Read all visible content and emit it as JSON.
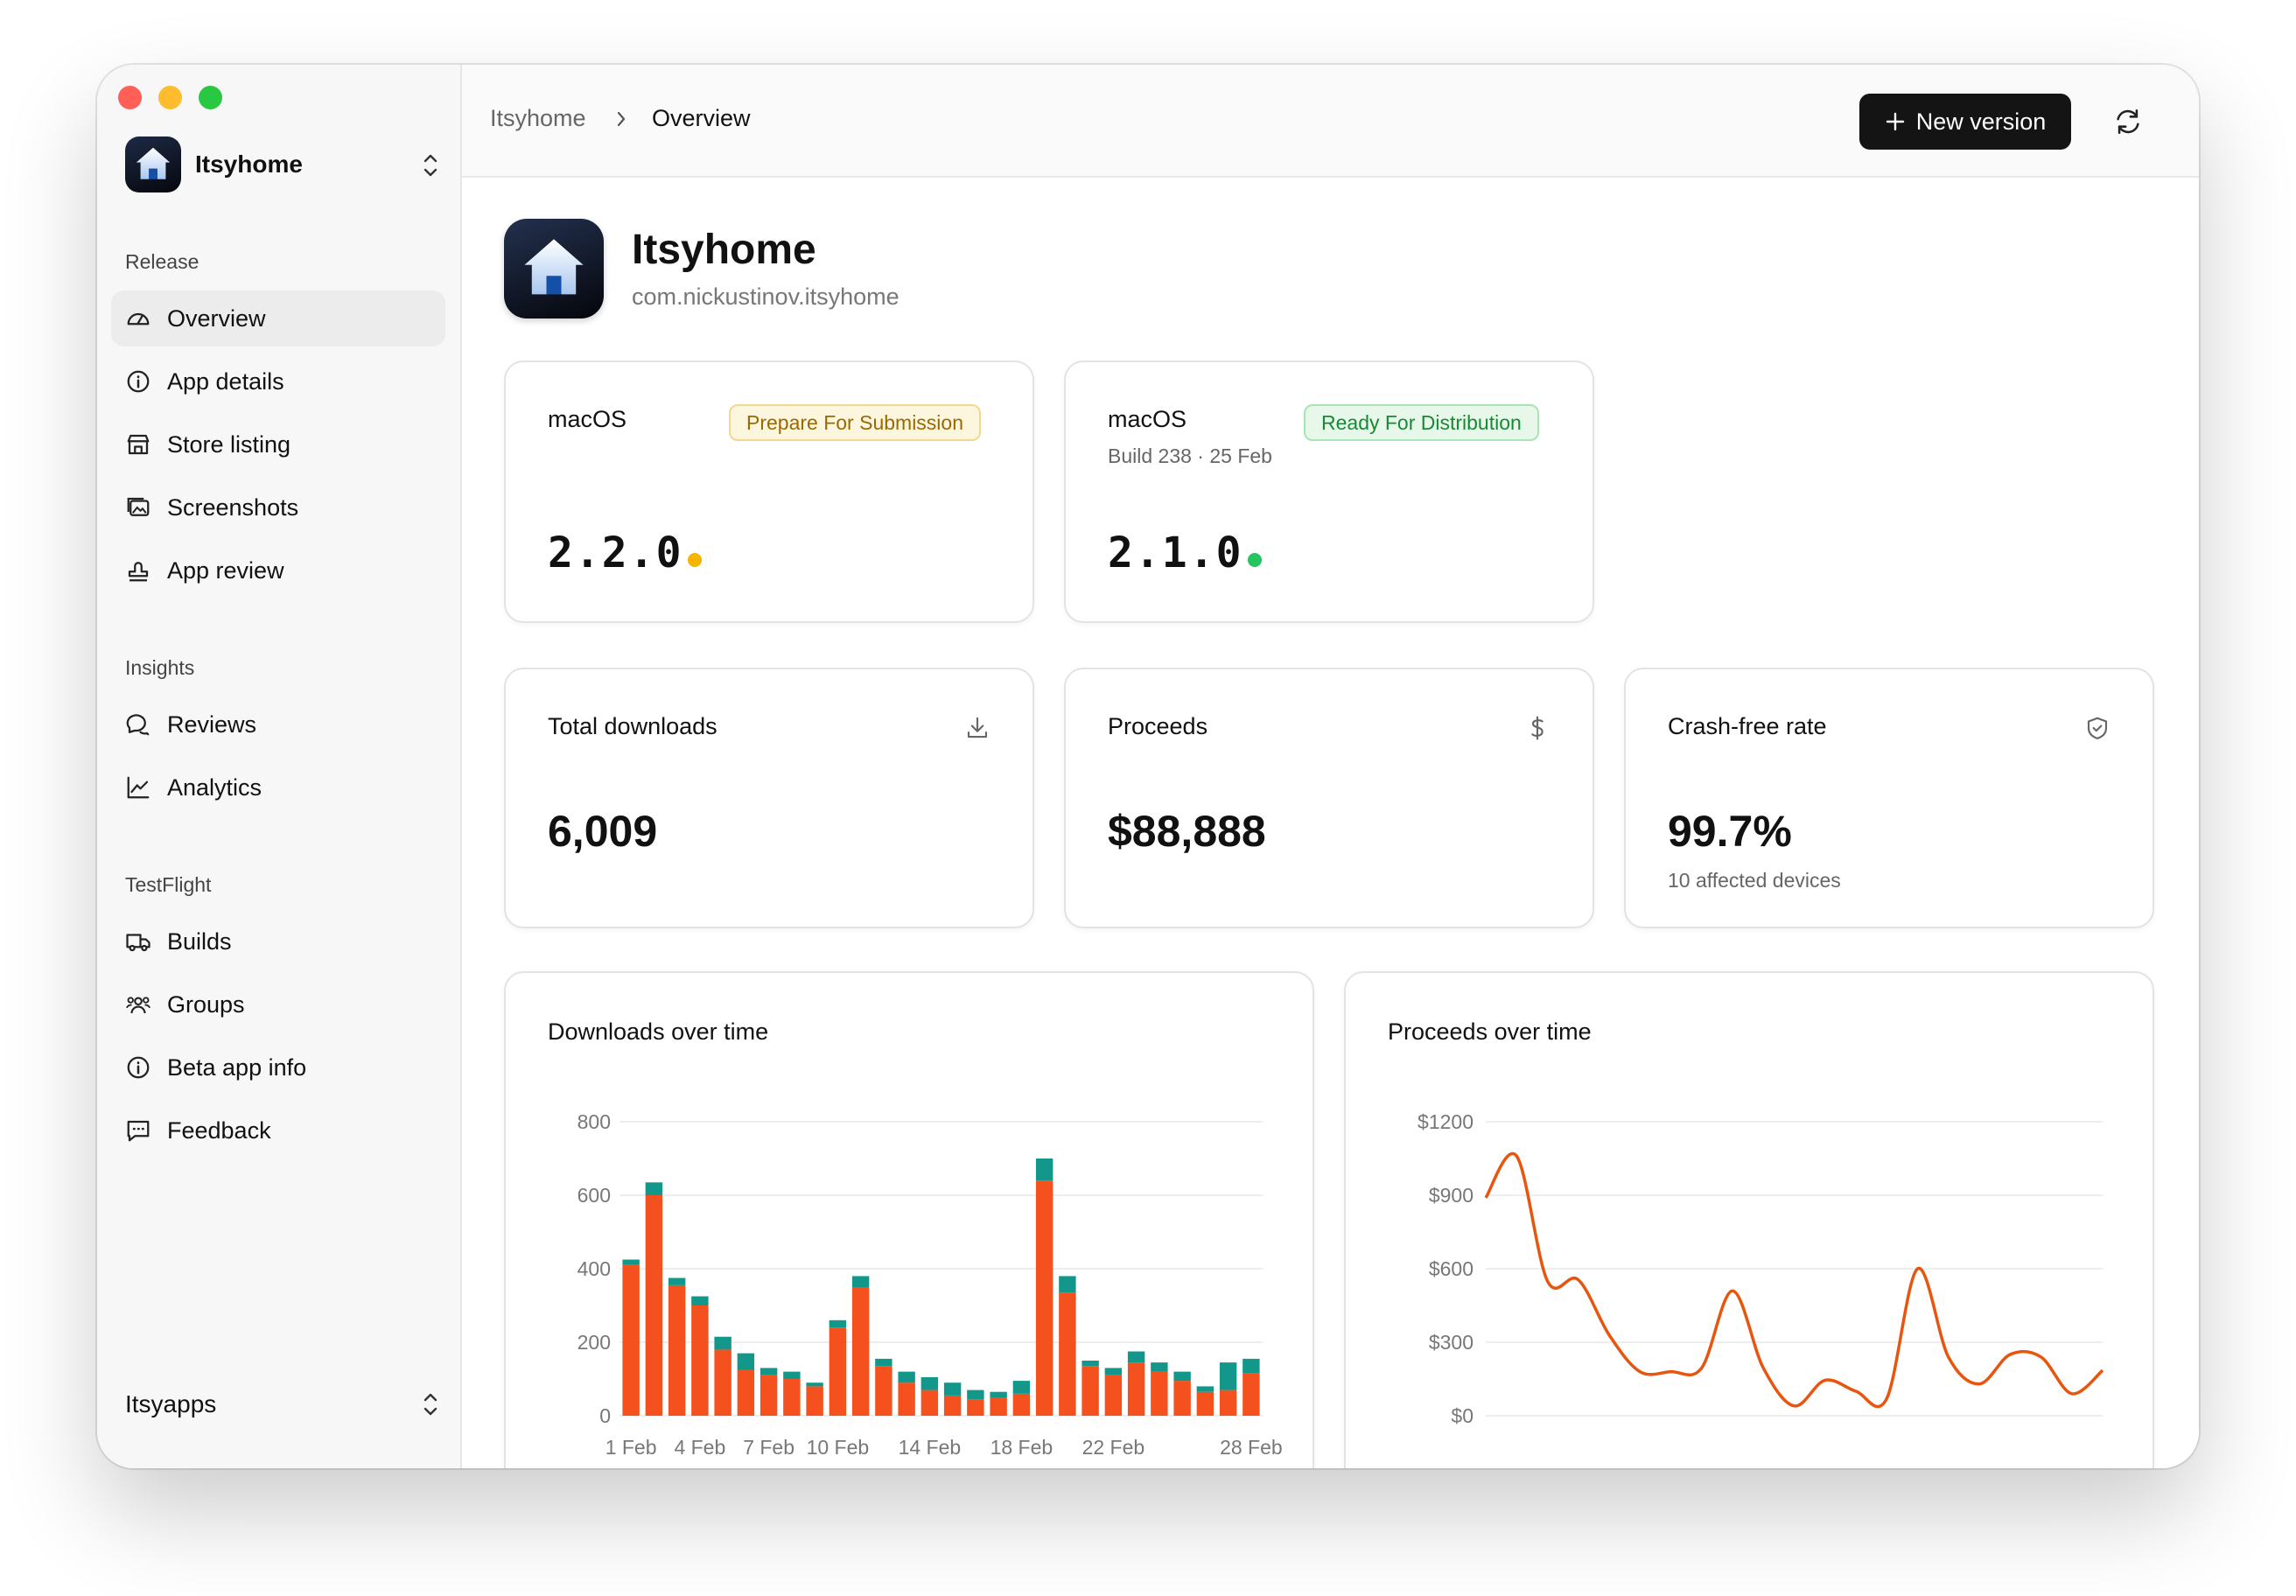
{
  "sidebar": {
    "app_name": "Itsyhome",
    "sections": [
      {
        "label": "Release",
        "items": [
          {
            "label": "Overview",
            "icon": "gauge-icon",
            "active": true
          },
          {
            "label": "App details",
            "icon": "info-icon"
          },
          {
            "label": "Store listing",
            "icon": "store-icon"
          },
          {
            "label": "Screenshots",
            "icon": "images-icon"
          },
          {
            "label": "App review",
            "icon": "stamp-icon"
          }
        ]
      },
      {
        "label": "Insights",
        "items": [
          {
            "label": "Reviews",
            "icon": "chat-bubbles-icon"
          },
          {
            "label": "Analytics",
            "icon": "line-chart-icon"
          }
        ]
      },
      {
        "label": "TestFlight",
        "items": [
          {
            "label": "Builds",
            "icon": "truck-icon"
          },
          {
            "label": "Groups",
            "icon": "users-icon"
          },
          {
            "label": "Beta app info",
            "icon": "info-icon"
          },
          {
            "label": "Feedback",
            "icon": "message-square-icon"
          }
        ]
      }
    ],
    "org_name": "Itsyapps"
  },
  "header": {
    "breadcrumb": [
      "Itsyhome",
      "Overview"
    ],
    "new_version_label": "New version"
  },
  "app": {
    "name": "Itsyhome",
    "bundle_id": "com.nickustinov.itsyhome"
  },
  "versions": [
    {
      "platform": "macOS",
      "status": "Prepare For Submission",
      "version": "2.2.0",
      "build": "",
      "status_color": "#f5b400"
    },
    {
      "platform": "macOS",
      "status": "Ready For Distribution",
      "version": "2.1.0",
      "build": "Build 238 · 25 Feb",
      "status_color": "#22c55e"
    }
  ],
  "stats": {
    "downloads": {
      "label": "Total downloads",
      "value": "6,009",
      "icon": "download-icon"
    },
    "proceeds": {
      "label": "Proceeds",
      "value": "$88,888",
      "icon": "dollar-icon"
    },
    "crash_free": {
      "label": "Crash-free rate",
      "value": "99.7%",
      "sub": "10 affected devices",
      "icon": "shield-check-icon"
    }
  },
  "chart_data": [
    {
      "type": "bar",
      "title": "Downloads over time",
      "stacked": true,
      "x_tick_labels": [
        "1 Feb",
        "4 Feb",
        "7 Feb",
        "10 Feb",
        "14 Feb",
        "18 Feb",
        "22 Feb",
        "28 Feb"
      ],
      "y_ticks": [
        "800",
        "600",
        "400",
        "200",
        "0"
      ],
      "ylim": [
        0,
        800
      ],
      "series": [
        {
          "color": "#f4511e",
          "values": [
            410,
            600,
            355,
            300,
            180,
            125,
            110,
            100,
            80,
            240,
            350,
            135,
            90,
            70,
            55,
            45,
            50,
            60,
            640,
            335,
            135,
            110,
            145,
            120,
            95,
            65,
            70,
            115
          ]
        },
        {
          "color": "#13978a",
          "values": [
            15,
            35,
            20,
            25,
            35,
            45,
            20,
            20,
            10,
            20,
            30,
            20,
            30,
            35,
            35,
            25,
            15,
            35,
            60,
            45,
            15,
            20,
            30,
            25,
            25,
            15,
            75,
            40
          ]
        }
      ]
    },
    {
      "type": "line",
      "title": "Proceeds over time",
      "y_ticks": [
        "$1200",
        "$900",
        "$600",
        "$300",
        "$0"
      ],
      "ylim": [
        0,
        1200
      ],
      "color": "#e8550f",
      "values": [
        890,
        1060,
        550,
        555,
        330,
        180,
        180,
        195,
        510,
        195,
        40,
        145,
        100,
        70,
        600,
        240,
        130,
        250,
        240,
        90,
        185
      ]
    }
  ]
}
